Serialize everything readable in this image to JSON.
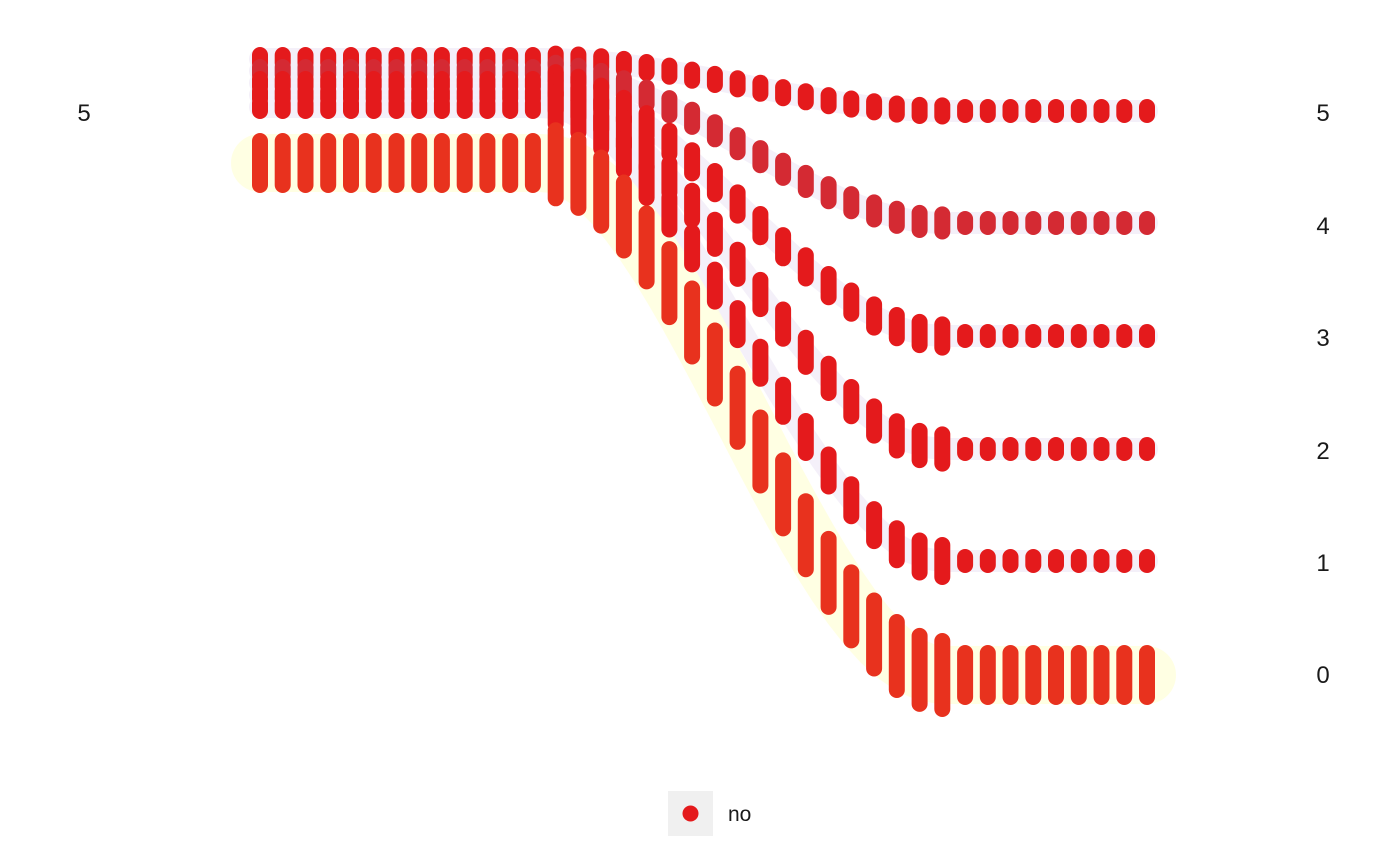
{
  "chart_data": {
    "type": "scatter",
    "subtype": "alluvial-dot-flow",
    "title": "",
    "xlabel": "",
    "ylabel": "",
    "left_axis": {
      "labels": [
        "5"
      ]
    },
    "right_axis": {
      "labels": [
        "5",
        "4",
        "3",
        "2",
        "1",
        "0"
      ]
    },
    "steps": 40,
    "flows": [
      {
        "from": "5",
        "to": "5",
        "count": 1,
        "color": "#e41a1c"
      },
      {
        "from": "5",
        "to": "4",
        "count": 1,
        "color": "#d42a33"
      },
      {
        "from": "5",
        "to": "3",
        "count": 1,
        "color": "#e41a1c"
      },
      {
        "from": "5",
        "to": "2",
        "count": 1,
        "color": "#e41a1c"
      },
      {
        "from": "5",
        "to": "1",
        "count": 1,
        "color": "#e41a1c"
      },
      {
        "from": "5",
        "to": "0",
        "count": 4,
        "color": "#e8321e"
      }
    ],
    "legend": {
      "position": "bottom",
      "entries": [
        {
          "label": "no",
          "color": "#e41a1c"
        }
      ]
    },
    "grid": false
  }
}
